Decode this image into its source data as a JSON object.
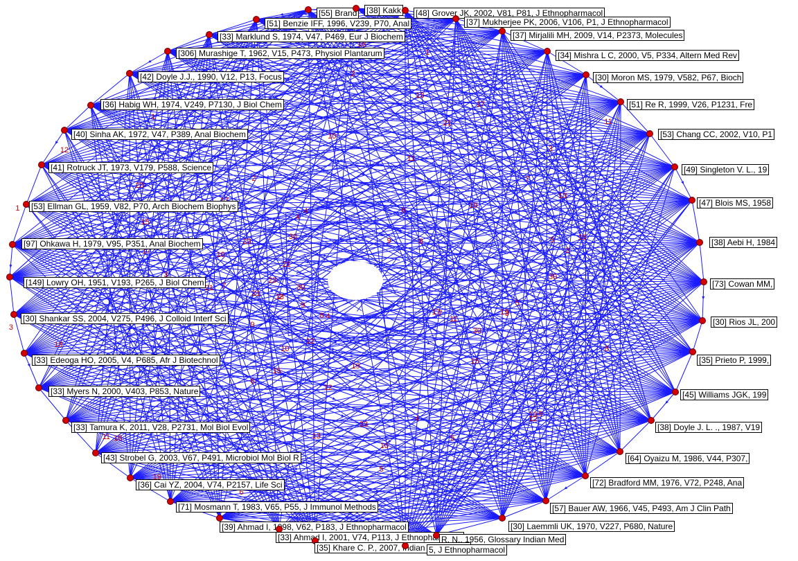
{
  "colors": {
    "edge": "#1a1aff",
    "node": "#d40000",
    "label_border": "#000000",
    "count": "#c00000"
  },
  "nodes": [
    {
      "label": "[55] Brand"
    },
    {
      "label": "[38] Kakk"
    },
    {
      "label": "[48] Grover JK, 2002, V81, P81, J Ethnopharmacol"
    },
    {
      "label": "[51] Benzie IFF, 1996, V239, P70, Anal"
    },
    {
      "label": "[37] Mukherjee PK, 2006, V106, P1, J Ethnopharmacol"
    },
    {
      "label": "[33] Marklund S, 1974, V47, P469, Eur J Biochem"
    },
    {
      "label": "[37] Mirjalili MH, 2009, V14, P2373, Molecules"
    },
    {
      "label": "[306] Murashige T, 1962, V15, P473, Physiol Plantarum"
    },
    {
      "label": "[34] Mishra L C, 2000, V5, P334, Altern Med Rev"
    },
    {
      "label": "[42] Doyle J.J., 1990, V12, P13, Focus"
    },
    {
      "label": "[30] Moron MS, 1979, V582, P67, Bioch"
    },
    {
      "label": "[36] Habig WH, 1974, V249, P7130, J Biol Chem"
    },
    {
      "label": "[51] Re R, 1999, V26, P1231, Fre"
    },
    {
      "label": "[40] Sinha AK, 1972, V47, P389, Anal Biochem"
    },
    {
      "label": "[53] Chang CC, 2002, V10, P1"
    },
    {
      "label": "[41] Rotruck JT, 1973, V179, P588, Science"
    },
    {
      "label": "[49] Singleton V. L., 19"
    },
    {
      "label": "[53] Ellman GL, 1959, V82, P70, Arch Biochem Biophys"
    },
    {
      "label": "[47] Blois MS, 1958"
    },
    {
      "label": "[97] Ohkawa H, 1979, V95, P351, Anal Biochem"
    },
    {
      "label": "[38] Aebi H, 1984"
    },
    {
      "label": "[149] Lowry OH, 1951, V193, P265, J Biol Chem"
    },
    {
      "label": "[73] Cowan MM,"
    },
    {
      "label": "[30] Shankar SS, 2004, V275, P496, J Colloid Interf Sci"
    },
    {
      "label": "[30] Rios JL, 200"
    },
    {
      "label": "[33] Edeoga HO, 2005, V4, P685, Afr J Biotechnol"
    },
    {
      "label": "[35] Prieto P, 1999,"
    },
    {
      "label": "[33] Myers N, 2000, V403, P853, Nature"
    },
    {
      "label": "[45] Williams JGK, 199"
    },
    {
      "label": "[33] Tamura K, 2011, V28, P2731, Mol Biol Evol"
    },
    {
      "label": "[38] Doyle J. L. ., 1987, V19"
    },
    {
      "label": "[43] Strobel G, 2003, V67, P491, Microbiol Mol Biol R"
    },
    {
      "label": "[64] Oyaizu M, 1986, V44, P307,"
    },
    {
      "label": "[36] Cai YZ, 2004, V74, P2157, Life Sci"
    },
    {
      "label": "[72] Bradford MM, 1976, V72, P248, Ana"
    },
    {
      "label": "[71] Mosmann T, 1983, V65, P55, J Immunol Methods"
    },
    {
      "label": "[57] Bauer AW, 1966, V45, P493, Am J Clin Path"
    },
    {
      "label": "[39] Ahmad I, 1998, V62, P183, J Ethnopharmacol"
    },
    {
      "label": "[30] Laemmli UK, 1970, V227, P680, Nature"
    },
    {
      "label": "[33] Ahmad I, 2001, V74, P113, J Ethnopharmacol"
    },
    {
      "label": "R. N., 1956, Glossary Indian Med"
    },
    {
      "label": "[35] Khare C. P., 2007, Indian Med Plants"
    },
    {
      "label": "5, J Ethnopharmacol"
    }
  ],
  "edge_counts": [
    "1",
    "2",
    "3",
    "4",
    "5",
    "6",
    "7",
    "8",
    "9",
    "10",
    "11",
    "12",
    "13",
    "15",
    "17",
    "18",
    "19",
    "21",
    "23",
    "30"
  ]
}
